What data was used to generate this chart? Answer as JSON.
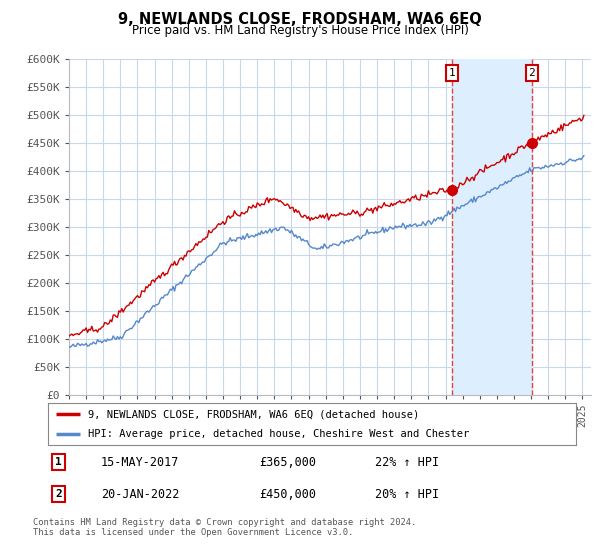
{
  "title": "9, NEWLANDS CLOSE, FRODSHAM, WA6 6EQ",
  "subtitle": "Price paid vs. HM Land Registry's House Price Index (HPI)",
  "ylim": [
    0,
    600000
  ],
  "yticks": [
    0,
    50000,
    100000,
    150000,
    200000,
    250000,
    300000,
    350000,
    400000,
    450000,
    500000,
    550000,
    600000
  ],
  "ytick_labels": [
    "£0",
    "£50K",
    "£100K",
    "£150K",
    "£200K",
    "£250K",
    "£300K",
    "£350K",
    "£400K",
    "£450K",
    "£500K",
    "£550K",
    "£600K"
  ],
  "background_color": "#ffffff",
  "plot_bg_color": "#ffffff",
  "grid_color": "#c8d8e8",
  "red_line_color": "#cc0000",
  "blue_line_color": "#5588cc",
  "vline_color": "#dd4444",
  "shade_color": "#ddeeff",
  "sale1_year": 2017.38,
  "sale1_price": 365000,
  "sale2_year": 2022.05,
  "sale2_price": 450000,
  "legend_label1": "9, NEWLANDS CLOSE, FRODSHAM, WA6 6EQ (detached house)",
  "legend_label2": "HPI: Average price, detached house, Cheshire West and Chester",
  "table_row1": [
    "1",
    "15-MAY-2017",
    "£365,000",
    "22% ↑ HPI"
  ],
  "table_row2": [
    "2",
    "20-JAN-2022",
    "£450,000",
    "20% ↑ HPI"
  ],
  "footer": "Contains HM Land Registry data © Crown copyright and database right 2024.\nThis data is licensed under the Open Government Licence v3.0.",
  "xmin": 1995,
  "xmax": 2025.5
}
